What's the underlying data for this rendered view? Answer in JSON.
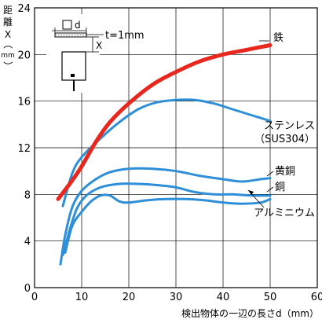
{
  "chart_data": {
    "type": "line",
    "xlabel": "検出物体の一辺の長さd（mm）",
    "ylabel": [
      "距",
      "離",
      "X",
      "（",
      "mm",
      "）"
    ],
    "xlim": [
      0,
      60
    ],
    "ylim": [
      0,
      24
    ],
    "xticks": [
      0,
      10,
      20,
      30,
      40,
      50,
      60
    ],
    "yticks": [
      0,
      4,
      8,
      12,
      16,
      20,
      24
    ],
    "grid": true,
    "inset": {
      "d_label": "d",
      "x_label": "X",
      "t_label": "t=1mm"
    },
    "series": [
      {
        "name": "鉄",
        "color": "#e8281e",
        "width": 5,
        "points": [
          [
            5,
            7.6
          ],
          [
            8,
            9.2
          ],
          [
            10,
            10.4
          ],
          [
            13,
            12.5
          ],
          [
            16,
            14.2
          ],
          [
            20,
            15.8
          ],
          [
            25,
            17.4
          ],
          [
            30,
            18.5
          ],
          [
            35,
            19.4
          ],
          [
            40,
            20.0
          ],
          [
            45,
            20.4
          ],
          [
            50,
            20.8
          ]
        ]
      },
      {
        "name": "ステンレス（SUS304）",
        "name_lines": [
          "ステンレス",
          "（SUS304）"
        ],
        "color": "#2e8fd8",
        "width": 3,
        "points": [
          [
            6,
            7.0
          ],
          [
            8,
            9.8
          ],
          [
            10,
            11.2
          ],
          [
            14,
            12.8
          ],
          [
            18,
            14.2
          ],
          [
            22,
            15.3
          ],
          [
            26,
            15.9
          ],
          [
            30,
            16.1
          ],
          [
            34,
            16.1
          ],
          [
            38,
            15.8
          ],
          [
            42,
            15.3
          ],
          [
            46,
            14.8
          ],
          [
            50,
            14.3
          ]
        ]
      },
      {
        "name": "黄銅",
        "color": "#2e8fd8",
        "width": 3,
        "points": [
          [
            5.5,
            2.0
          ],
          [
            6.5,
            4.5
          ],
          [
            8,
            6.9
          ],
          [
            10,
            8.3
          ],
          [
            13,
            9.3
          ],
          [
            16,
            9.9
          ],
          [
            20,
            10.2
          ],
          [
            25,
            10.2
          ],
          [
            30,
            10.0
          ],
          [
            35,
            9.6
          ],
          [
            40,
            9.3
          ],
          [
            44,
            9.1
          ],
          [
            48,
            9.3
          ],
          [
            50,
            9.4
          ]
        ]
      },
      {
        "name": "銅",
        "color": "#2e8fd8",
        "width": 3,
        "points": [
          [
            6,
            2.8
          ],
          [
            7.5,
            5.0
          ],
          [
            9,
            6.8
          ],
          [
            11,
            7.9
          ],
          [
            14,
            8.6
          ],
          [
            18,
            8.9
          ],
          [
            22,
            8.9
          ],
          [
            26,
            8.8
          ],
          [
            30,
            8.6
          ],
          [
            34,
            8.2
          ],
          [
            38,
            8.0
          ],
          [
            42,
            8.0
          ],
          [
            46,
            7.9
          ],
          [
            50,
            7.9
          ]
        ]
      },
      {
        "name": "アルミニウム",
        "color": "#2e8fd8",
        "width": 3,
        "points": [
          [
            6.5,
            3.0
          ],
          [
            8,
            5.3
          ],
          [
            10,
            6.5
          ],
          [
            12,
            7.4
          ],
          [
            14,
            7.9
          ],
          [
            16,
            7.9
          ],
          [
            18,
            7.4
          ],
          [
            20,
            7.3
          ],
          [
            24,
            7.5
          ],
          [
            28,
            7.6
          ],
          [
            32,
            7.6
          ],
          [
            36,
            7.5
          ],
          [
            40,
            7.3
          ],
          [
            44,
            7.2
          ],
          [
            48,
            7.3
          ],
          [
            50,
            7.6
          ]
        ]
      }
    ],
    "annotations": [
      {
        "text": "鉄",
        "series": 0
      },
      {
        "text": "ステンレス",
        "series": 1
      },
      {
        "text": "（SUS304）",
        "series": 1
      },
      {
        "text": "黄銅",
        "series": 2
      },
      {
        "text": "銅",
        "series": 3
      },
      {
        "text": "アルミニウム",
        "series": 4
      }
    ]
  }
}
